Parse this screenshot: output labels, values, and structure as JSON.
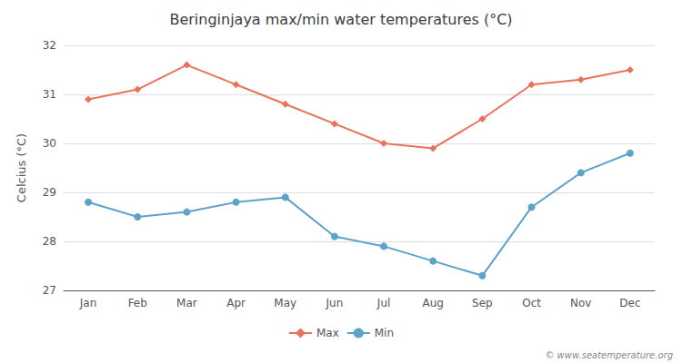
{
  "chart_data": {
    "type": "line",
    "title": "Beringinjaya max/min water temperatures (°C)",
    "ylabel": "Celcius (°C)",
    "categories": [
      "Jan",
      "Feb",
      "Mar",
      "Apr",
      "May",
      "Jun",
      "Jul",
      "Aug",
      "Sep",
      "Oct",
      "Nov",
      "Dec"
    ],
    "series": [
      {
        "name": "Max",
        "color": "#e8735a",
        "marker": "diamond",
        "values": [
          30.9,
          31.1,
          31.6,
          31.2,
          30.8,
          30.4,
          30.0,
          29.9,
          30.5,
          31.2,
          31.3,
          31.5
        ]
      },
      {
        "name": "Min",
        "color": "#5ba3c9",
        "marker": "circle",
        "values": [
          28.8,
          28.5,
          28.6,
          28.8,
          28.9,
          28.1,
          27.9,
          27.6,
          27.3,
          28.7,
          29.4,
          29.8
        ]
      }
    ],
    "ylim": [
      27.0,
      32.0
    ],
    "yticks": [
      27,
      28,
      29,
      30,
      31,
      32
    ],
    "grid": true,
    "legend": "bottom",
    "annotations": [
      "© www.seatemperature.org"
    ]
  }
}
